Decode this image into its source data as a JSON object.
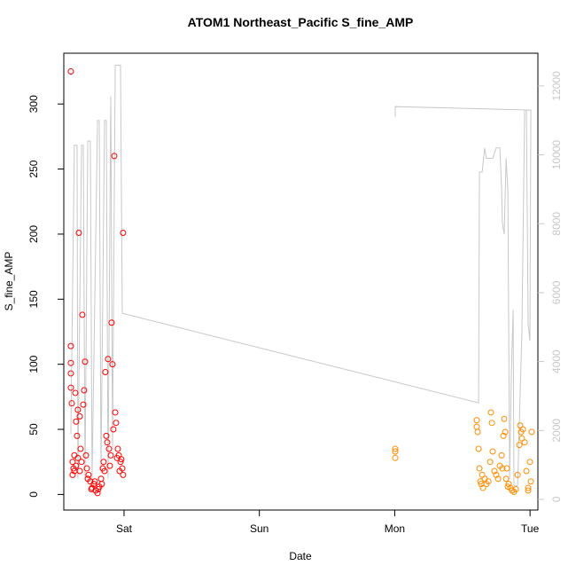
{
  "chart_data": {
    "type": "scatter",
    "title": "ATOM1 Northeast_Pacific S_fine_AMP",
    "x_label": "Date",
    "y_label": "S_fine_AMP",
    "xlim": [
      -0.445,
      3.058
    ],
    "xticks": [
      {
        "value": 0,
        "label": "Sat"
      },
      {
        "value": 1,
        "label": "Sun"
      },
      {
        "value": 2,
        "label": "Mon"
      },
      {
        "value": 3,
        "label": "Tue"
      }
    ],
    "ylim": [
      -12,
      339
    ],
    "yticks": [
      0,
      50,
      100,
      150,
      200,
      250,
      300
    ],
    "y2lim": [
      -310,
      12950
    ],
    "y2ticks": [
      0,
      2000,
      4000,
      6000,
      8000,
      10000,
      12000
    ],
    "y2_color": "#c8c8c8",
    "series": [
      {
        "type": "line",
        "axis": "y2",
        "color": "#c8c8c8",
        "x": [
          -0.393,
          -0.367,
          -0.347,
          -0.341,
          -0.314,
          -0.301,
          -0.288,
          -0.268,
          -0.249,
          -0.236,
          -0.196,
          -0.183,
          -0.17,
          -0.144,
          -0.131,
          -0.118,
          -0.098,
          -0.085,
          -0.065,
          -0.026,
          -0.013,
          2.62,
          2.626,
          2.646,
          2.665,
          2.678,
          2.698,
          2.724,
          2.75,
          2.777,
          2.79,
          2.796,
          2.809,
          2.823,
          2.836,
          2.849,
          2.862,
          2.875,
          2.881,
          2.908,
          2.94,
          2.96,
          2.973,
          2.986,
          2.999,
          3.006,
          2.004,
          2.004
        ],
        "values": [
          1900,
          10280,
          10280,
          600,
          10280,
          10280,
          600,
          10400,
          10400,
          600,
          11000,
          11000,
          800,
          11000,
          11000,
          600,
          11700,
          1500,
          12600,
          12600,
          5400,
          2800,
          9500,
          9500,
          10200,
          9900,
          9900,
          9900,
          10200,
          10200,
          9000,
          8000,
          7700,
          9900,
          9000,
          600,
          3700,
          5500,
          400,
          400,
          4900,
          11300,
          11300,
          5100,
          4600,
          11300,
          11400,
          11100
        ]
      },
      {
        "type": "scatter",
        "color": "#ff0000",
        "x": [
          -0.393,
          -0.393,
          -0.393,
          -0.393,
          -0.393,
          -0.386,
          -0.38,
          -0.373,
          -0.367,
          -0.36,
          -0.354,
          -0.347,
          -0.341,
          -0.334,
          -0.327,
          -0.321,
          -0.308,
          -0.301,
          -0.295,
          -0.288,
          -0.281,
          -0.275,
          -0.262,
          -0.249,
          -0.236,
          -0.223,
          -0.21,
          -0.196,
          -0.183,
          -0.17,
          -0.157,
          -0.144,
          -0.138,
          -0.131,
          -0.124,
          -0.118,
          -0.111,
          -0.098,
          -0.092,
          -0.085,
          -0.079,
          -0.072,
          -0.065,
          -0.059,
          -0.052,
          -0.039,
          -0.026,
          -0.013,
          -0.007,
          -0.007,
          -0.38,
          -0.367,
          -0.354,
          -0.341,
          -0.327,
          -0.314,
          -0.268,
          -0.242,
          -0.216,
          -0.19,
          -0.164,
          -0.151,
          -0.105,
          -0.046,
          -0.033,
          -0.02
        ],
        "values": [
          325,
          114,
          101,
          93,
          82,
          70,
          25,
          20,
          30,
          78,
          56,
          45,
          65,
          201,
          60,
          35,
          138,
          69,
          80,
          102,
          30,
          20,
          15,
          10,
          5,
          8,
          3,
          1,
          6,
          12,
          20,
          18,
          94,
          45,
          40,
          104,
          35,
          30,
          132,
          100,
          50,
          260,
          63,
          55,
          28,
          30,
          25,
          20,
          201,
          15,
          15,
          18,
          22,
          28,
          18,
          25,
          12,
          4,
          10,
          4,
          8,
          25,
          22,
          35,
          18,
          27
        ]
      },
      {
        "type": "scatter",
        "color": "#ff8c00",
        "x": [
          2.004,
          2.004,
          2.004,
          2.606,
          2.606,
          2.613,
          2.62,
          2.626,
          2.633,
          2.639,
          2.652,
          2.665,
          2.678,
          2.692,
          2.705,
          2.711,
          2.718,
          2.724,
          2.737,
          2.75,
          2.764,
          2.777,
          2.79,
          2.803,
          2.809,
          2.816,
          2.829,
          2.842,
          2.855,
          2.868,
          2.881,
          2.895,
          2.908,
          2.921,
          2.927,
          2.934,
          2.94,
          2.947,
          2.96,
          2.973,
          2.986,
          2.999,
          3.006,
          3.012,
          2.986,
          2.646,
          2.796,
          2.823,
          2.836
        ],
        "values": [
          35,
          33,
          28,
          57,
          52,
          48,
          35,
          20,
          10,
          8,
          5,
          12,
          8,
          10,
          25,
          63,
          55,
          33,
          18,
          15,
          12,
          22,
          30,
          45,
          58,
          48,
          20,
          8,
          5,
          3,
          2,
          4,
          15,
          38,
          53,
          48,
          43,
          50,
          40,
          18,
          5,
          25,
          10,
          48,
          3,
          15,
          20,
          12,
          6
        ]
      }
    ]
  }
}
